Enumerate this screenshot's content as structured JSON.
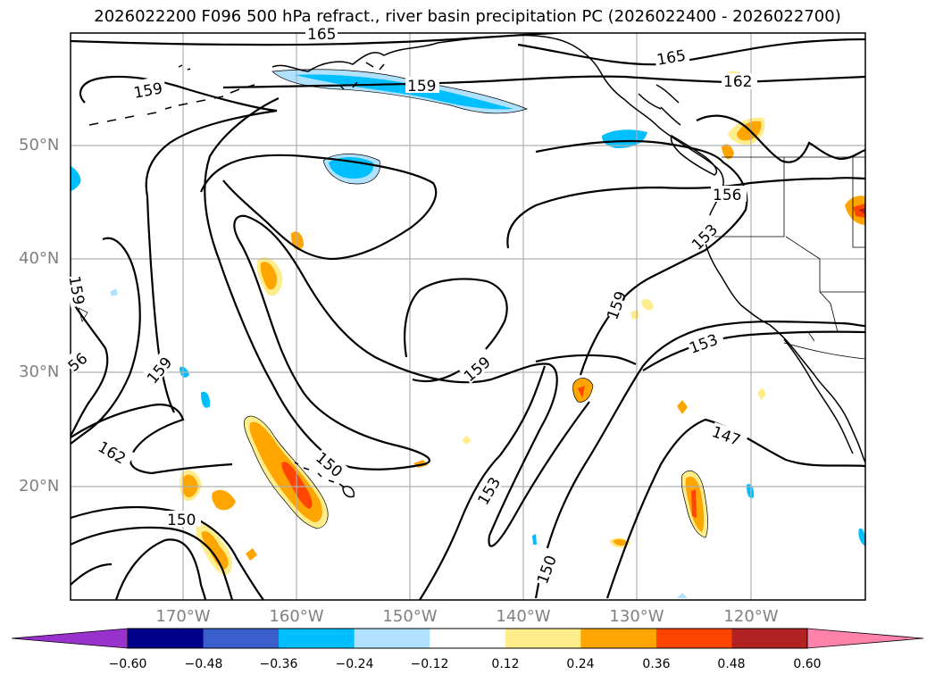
{
  "title": "2026022200 F096 500 hPa refract., river basin precipitation PC (2026022400 - 2026022700)",
  "lat_labels": [
    "50°N",
    "40°N",
    "30°N",
    "20°N"
  ],
  "lon_labels": [
    "170°W",
    "160°W",
    "150°W",
    "140°W",
    "130°W",
    "120°W"
  ],
  "contour_labels": [
    "165",
    "165",
    "159",
    "159",
    "162",
    "159",
    "156",
    "153",
    "159",
    "56",
    "159",
    "159",
    "162",
    "150",
    "150",
    "153",
    "150",
    "153",
    "147"
  ],
  "colorbar": {
    "ticks": [
      "−0.60",
      "−0.48",
      "−0.36",
      "−0.24",
      "−0.12",
      "0.12",
      "0.24",
      "0.36",
      "0.48",
      "0.60"
    ],
    "colors": [
      "#9932cc",
      "#00008b",
      "#3a5fcd",
      "#00bfff",
      "#b0e2ff",
      "#ffffff",
      "#ffec8b",
      "#ffa500",
      "#ff4500",
      "#b22222",
      "#ff82ab"
    ]
  }
}
